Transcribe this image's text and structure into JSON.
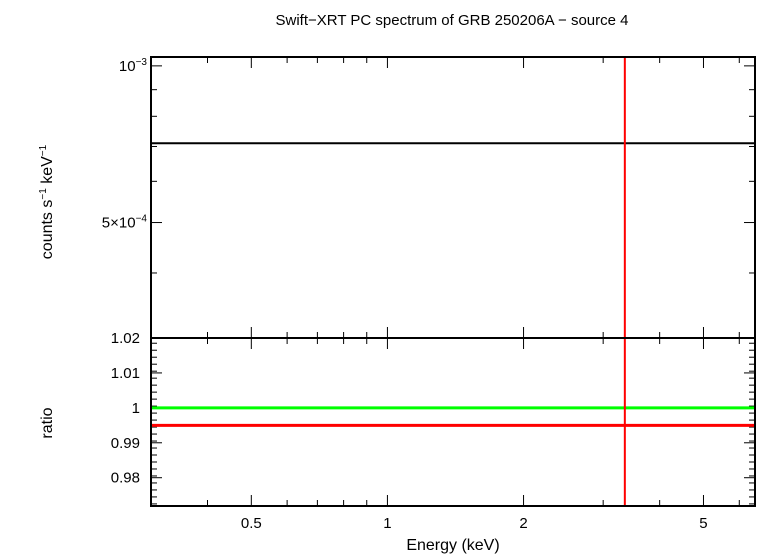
{
  "chart_data": [
    {
      "type": "line",
      "panel": "spectrum",
      "title": "Swift−XRT PC spectrum of GRB 250206A − source 4",
      "ylabel_parts": [
        "counts s",
        "−1",
        " keV",
        "−1"
      ],
      "yscale": "log",
      "xscale": "log",
      "xlim": [
        0.3,
        6.5
      ],
      "ylim": [
        0.0003,
        0.00104
      ],
      "ytick_labels": [
        {
          "value": 0.001,
          "base": "10",
          "exp": "−3"
        },
        {
          "value": 0.0005,
          "base": "5×10",
          "exp": "−4"
        }
      ],
      "series": [
        {
          "color": "#000000",
          "x": [
            0.3,
            6.5
          ],
          "y": [
            0.00071,
            0.00071
          ]
        }
      ],
      "vertical_lines": [
        {
          "x": 3.35,
          "color": "#ff0000"
        }
      ]
    },
    {
      "type": "line",
      "panel": "ratio",
      "ylabel": "ratio",
      "xlabel": "Energy (keV)",
      "xscale": "log",
      "xlim": [
        0.3,
        6.5
      ],
      "ylim": [
        0.9719,
        1.02
      ],
      "xtick_labels": [
        {
          "value": 0.5,
          "label": "0.5"
        },
        {
          "value": 1,
          "label": "1"
        },
        {
          "value": 2,
          "label": "2"
        },
        {
          "value": 5,
          "label": "5"
        }
      ],
      "ytick_labels": [
        {
          "value": 1.02,
          "label": "1.02"
        },
        {
          "value": 1.01,
          "label": "1.01"
        },
        {
          "value": 1.0,
          "label": "1"
        },
        {
          "value": 0.99,
          "label": "0.99"
        },
        {
          "value": 0.98,
          "label": "0.98"
        }
      ],
      "series": [
        {
          "color": "#00ff00",
          "x": [
            0.3,
            6.5
          ],
          "y": [
            1.0,
            1.0
          ]
        },
        {
          "color": "#ff0000",
          "x": [
            0.3,
            6.5
          ],
          "y": [
            0.995,
            0.995
          ]
        }
      ],
      "vertical_lines": [
        {
          "x": 3.35,
          "color": "#ff0000"
        }
      ]
    }
  ]
}
